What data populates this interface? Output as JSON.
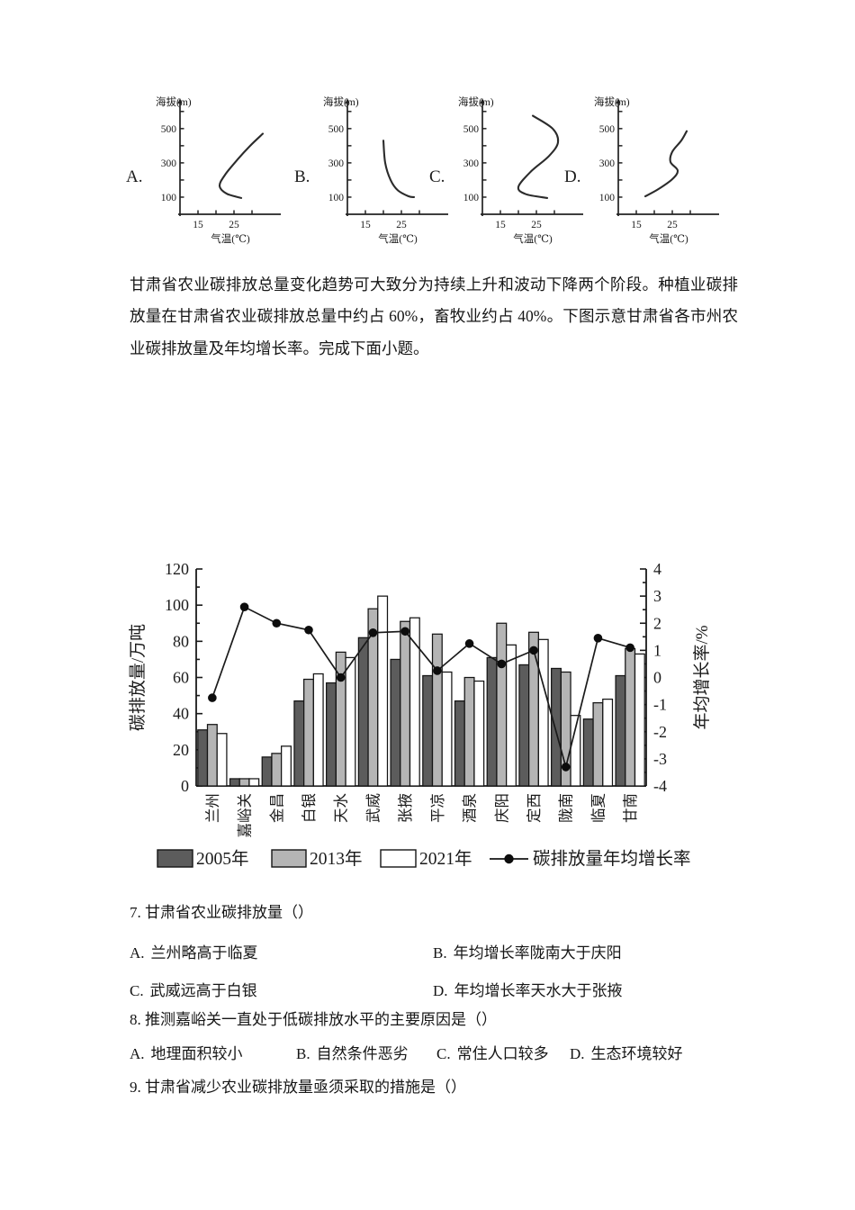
{
  "page": {
    "background": "#ffffff"
  },
  "intro_paragraph": "甘肃省农业碳排放总量变化趋势可大致分为持续上升和波动下降两个阶段。种植业碳排放量在甘肃省农业碳排放总量中约占 60%，畜牧业约占 40%。下图示意甘肃省各市州农业碳排放量及年均增长率。完成下面小题。",
  "chart_data": [
    {
      "id": "profile-A",
      "type": "line",
      "option_label": "A.",
      "xlabel": "气温(℃)",
      "ylabel": "海拔(m)",
      "xlim": [
        10,
        35
      ],
      "ylim": [
        0,
        620
      ],
      "xticks": [
        15,
        20,
        25,
        30
      ],
      "xtick_labeled": [
        15,
        25
      ],
      "yticks": [
        100,
        200,
        300,
        400,
        500,
        600
      ],
      "ytick_labeled": [
        100,
        300,
        500
      ],
      "points": [
        [
          27,
          95
        ],
        [
          23,
          120
        ],
        [
          21,
          165
        ],
        [
          22.5,
          230
        ],
        [
          26,
          320
        ],
        [
          29.5,
          400
        ],
        [
          33,
          470
        ]
      ]
    },
    {
      "id": "profile-B",
      "type": "line",
      "option_label": "B.",
      "xlabel": "气温(℃)",
      "ylabel": "海拔(m)",
      "xlim": [
        10,
        35
      ],
      "ylim": [
        0,
        620
      ],
      "xticks": [
        15,
        20,
        25,
        30
      ],
      "xtick_labeled": [
        15,
        25
      ],
      "yticks": [
        100,
        200,
        300,
        400,
        500,
        600
      ],
      "ytick_labeled": [
        100,
        300,
        500
      ],
      "points": [
        [
          20,
          430
        ],
        [
          20.5,
          300
        ],
        [
          22,
          200
        ],
        [
          24,
          140
        ],
        [
          27,
          105
        ],
        [
          28.5,
          100
        ]
      ]
    },
    {
      "id": "profile-C",
      "type": "line",
      "option_label": "C.",
      "xlabel": "气温(℃)",
      "ylabel": "海拔(m)",
      "xlim": [
        10,
        35
      ],
      "ylim": [
        0,
        620
      ],
      "xticks": [
        15,
        20,
        25,
        30
      ],
      "xtick_labeled": [
        15,
        25
      ],
      "yticks": [
        100,
        200,
        300,
        400,
        500,
        600
      ],
      "ytick_labeled": [
        100,
        300,
        500
      ],
      "points": [
        [
          28,
          95
        ],
        [
          22,
          118
        ],
        [
          20,
          160
        ],
        [
          23.5,
          250
        ],
        [
          28.5,
          340
        ],
        [
          31,
          420
        ],
        [
          29.5,
          500
        ],
        [
          24,
          575
        ]
      ]
    },
    {
      "id": "profile-D",
      "type": "line",
      "option_label": "D.",
      "xlabel": "气温(℃)",
      "ylabel": "海拔(m)",
      "xlim": [
        10,
        35
      ],
      "ylim": [
        0,
        620
      ],
      "xticks": [
        15,
        20,
        25,
        30
      ],
      "xtick_labeled": [
        15,
        25
      ],
      "yticks": [
        100,
        200,
        300,
        400,
        500,
        600
      ],
      "ytick_labeled": [
        100,
        300,
        500
      ],
      "points": [
        [
          17.5,
          105
        ],
        [
          21,
          145
        ],
        [
          25,
          205
        ],
        [
          26.5,
          255
        ],
        [
          24.5,
          305
        ],
        [
          25,
          365
        ],
        [
          27.5,
          430
        ],
        [
          29,
          485
        ]
      ]
    },
    {
      "id": "emissions",
      "type": "bar+line",
      "categories": [
        "兰州",
        "嘉峪关",
        "金昌",
        "白银",
        "天水",
        "武威",
        "张掖",
        "平凉",
        "酒泉",
        "庆阳",
        "定西",
        "陇南",
        "临夏",
        "甘南"
      ],
      "series": [
        {
          "name": "2005年",
          "type": "bar",
          "color": "#5c5c5c",
          "values": [
            31,
            4,
            16,
            47,
            57,
            82,
            70,
            61,
            47,
            71,
            67,
            65,
            37,
            61
          ]
        },
        {
          "name": "2013年",
          "type": "bar",
          "color": "#b5b5b5",
          "values": [
            34,
            4,
            18,
            59,
            74,
            98,
            91,
            84,
            60,
            90,
            85,
            63,
            46,
            76
          ]
        },
        {
          "name": "2021年",
          "type": "bar",
          "color": "#ffffff",
          "values": [
            29,
            4,
            22,
            62,
            71,
            105,
            93,
            63,
            58,
            78,
            81,
            39,
            48,
            73
          ]
        },
        {
          "name": "碳排放量年均增长率",
          "type": "line",
          "color": "#1a1a1a",
          "values": [
            -0.75,
            2.6,
            2.0,
            1.75,
            0.0,
            1.65,
            1.7,
            0.25,
            1.25,
            0.5,
            1.0,
            -3.3,
            1.45,
            1.1
          ]
        }
      ],
      "ylabel_left": "碳排放量/万吨",
      "ylabel_right": "年均增长率/%",
      "ylim_left": [
        0,
        120
      ],
      "ytick_step_left": 20,
      "yminor_step_left": 10,
      "ylim_right": [
        -4,
        4
      ],
      "ytick_step_right": 1,
      "yminor_step_right": 0.5,
      "grid": false,
      "legend_position": "bottom",
      "axis_color": "#1a1a1a"
    }
  ],
  "questions": [
    {
      "number": "7.",
      "stem": "甘肃省农业碳排放量（）",
      "layout": "two-col",
      "options": [
        {
          "label": "A.",
          "text": "兰州略高于临夏"
        },
        {
          "label": "B.",
          "text": "年均增长率陇南大于庆阳"
        },
        {
          "label": "C.",
          "text": "武威远高于白银"
        },
        {
          "label": "D.",
          "text": "年均增长率天水大于张掖"
        }
      ]
    },
    {
      "number": "8.",
      "stem": "推测嘉峪关一直处于低碳排放水平的主要原因是（）",
      "layout": "one-row",
      "options": [
        {
          "label": "A.",
          "text": "地理面积较小"
        },
        {
          "label": "B.",
          "text": "自然条件恶劣"
        },
        {
          "label": "C.",
          "text": "常住人口较多"
        },
        {
          "label": "D.",
          "text": "生态环境较好"
        }
      ]
    },
    {
      "number": "9.",
      "stem": "甘肃省减少农业碳排放量亟须采取的措施是（）",
      "options": []
    }
  ]
}
